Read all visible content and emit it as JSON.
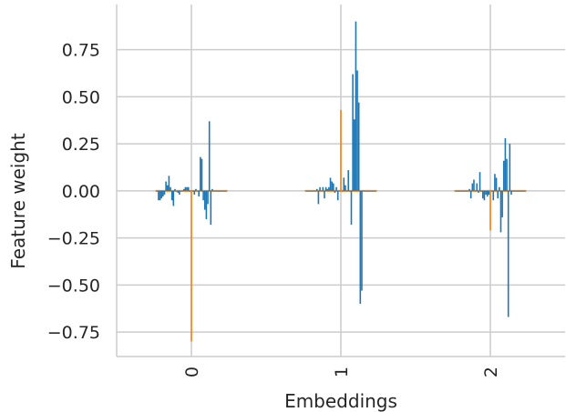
{
  "chart_data": {
    "type": "bar",
    "xlabel": "Embeddings",
    "ylabel": "Feature weight",
    "xlim": [
      -0.5,
      2.5
    ],
    "ylim": [
      -0.88,
      0.99
    ],
    "grid": true,
    "x_ticks": [
      0,
      1,
      2
    ],
    "x_tick_labels": [
      "0",
      "1",
      "2"
    ],
    "y_ticks": [
      -0.75,
      -0.5,
      -0.25,
      0.0,
      0.25,
      0.5,
      0.75
    ],
    "y_tick_labels": [
      "−0.75",
      "−0.50",
      "−0.25",
      "0.00",
      "0.25",
      "0.50",
      "0.75"
    ],
    "colors": {
      "weights": "#1f77b4",
      "highlight": "#ff7f0e",
      "grid": "#cccccc",
      "text": "#262626"
    },
    "series": [
      {
        "x": [
          -0.23,
          -0.22,
          -0.21,
          -0.2,
          -0.19,
          -0.18,
          -0.17,
          -0.16,
          -0.15,
          -0.14,
          -0.13,
          -0.12,
          -0.11,
          -0.1,
          -0.09,
          -0.08,
          -0.07,
          -0.06,
          -0.05,
          -0.04,
          -0.03,
          -0.02,
          -0.01,
          0.01,
          0.02,
          0.03,
          0.04,
          0.05,
          0.06,
          0.07,
          0.08,
          0.09,
          0.1,
          0.11,
          0.12,
          0.13,
          0.14,
          0.15,
          0.16,
          0.17,
          0.18,
          0.19,
          0.2,
          0.21,
          0.22,
          0.23,
          0.77,
          0.78,
          0.79,
          0.8,
          0.81,
          0.82,
          0.83,
          0.84,
          0.85,
          0.86,
          0.87,
          0.88,
          0.89,
          0.9,
          0.91,
          0.92,
          0.93,
          0.94,
          0.95,
          0.96,
          0.97,
          0.98,
          0.99,
          1.01,
          1.02,
          1.03,
          1.04,
          1.05,
          1.06,
          1.07,
          1.08,
          1.09,
          1.1,
          1.11,
          1.12,
          1.13,
          1.14,
          1.15,
          1.16,
          1.17,
          1.18,
          1.19,
          1.2,
          1.21,
          1.22,
          1.23,
          1.77,
          1.78,
          1.79,
          1.8,
          1.81,
          1.82,
          1.83,
          1.84,
          1.85,
          1.86,
          1.87,
          1.88,
          1.89,
          1.9,
          1.91,
          1.92,
          1.93,
          1.94,
          1.95,
          1.96,
          1.97,
          1.98,
          1.99,
          2.01,
          2.02,
          2.03,
          2.04,
          2.05,
          2.06,
          2.07,
          2.08,
          2.09,
          2.1,
          2.11,
          2.12,
          2.13,
          2.14,
          2.15,
          2.16,
          2.17,
          2.18,
          2.19,
          2.2,
          2.21,
          2.22,
          2.23
        ],
        "y": [
          0.0,
          -0.05,
          -0.05,
          -0.04,
          -0.03,
          -0.02,
          0.05,
          0.03,
          0.08,
          0.02,
          -0.05,
          -0.08,
          0.01,
          0.0,
          -0.01,
          -0.02,
          0.0,
          0.0,
          0.01,
          0.02,
          0.02,
          0.02,
          0.0,
          0.0,
          -0.02,
          0.01,
          0.0,
          -0.03,
          0.18,
          0.17,
          -0.05,
          -0.1,
          -0.15,
          -0.07,
          0.37,
          -0.18,
          0.01,
          0.0,
          0.0,
          0.0,
          0.0,
          0.0,
          0.0,
          0.0,
          0.0,
          0.0,
          0.0,
          0.0,
          0.0,
          0.0,
          0.0,
          0.0,
          0.0,
          0.01,
          -0.07,
          0.02,
          0.0,
          0.02,
          -0.04,
          0.02,
          0.01,
          0.02,
          0.07,
          0.05,
          0.04,
          -0.01,
          0.02,
          -0.05,
          0.0,
          0.0,
          0.07,
          0.03,
          0.0,
          0.11,
          0.0,
          -0.18,
          0.62,
          0.38,
          0.9,
          0.64,
          0.47,
          -0.6,
          -0.53,
          0.0,
          0.0,
          0.0,
          0.0,
          0.0,
          0.0,
          0.0,
          0.0,
          0.0,
          0.0,
          0.0,
          0.0,
          0.0,
          0.0,
          0.0,
          0.0,
          0.0,
          0.0,
          0.01,
          -0.04,
          0.04,
          0.06,
          0.0,
          0.04,
          -0.01,
          0.1,
          0.0,
          -0.04,
          -0.05,
          -0.02,
          -0.03,
          -0.02,
          0.0,
          -0.05,
          0.09,
          0.07,
          -0.04,
          0.02,
          -0.22,
          -0.14,
          0.16,
          0.28,
          0.17,
          -0.67,
          0.25,
          -0.02,
          0.0,
          0.0,
          0.0,
          0.0,
          0.0,
          0.0,
          0.0,
          0.0,
          0.0
        ]
      },
      {
        "x": [
          0.0,
          1.0,
          2.0
        ],
        "y": [
          -0.8,
          0.43,
          -0.21
        ]
      }
    ]
  }
}
